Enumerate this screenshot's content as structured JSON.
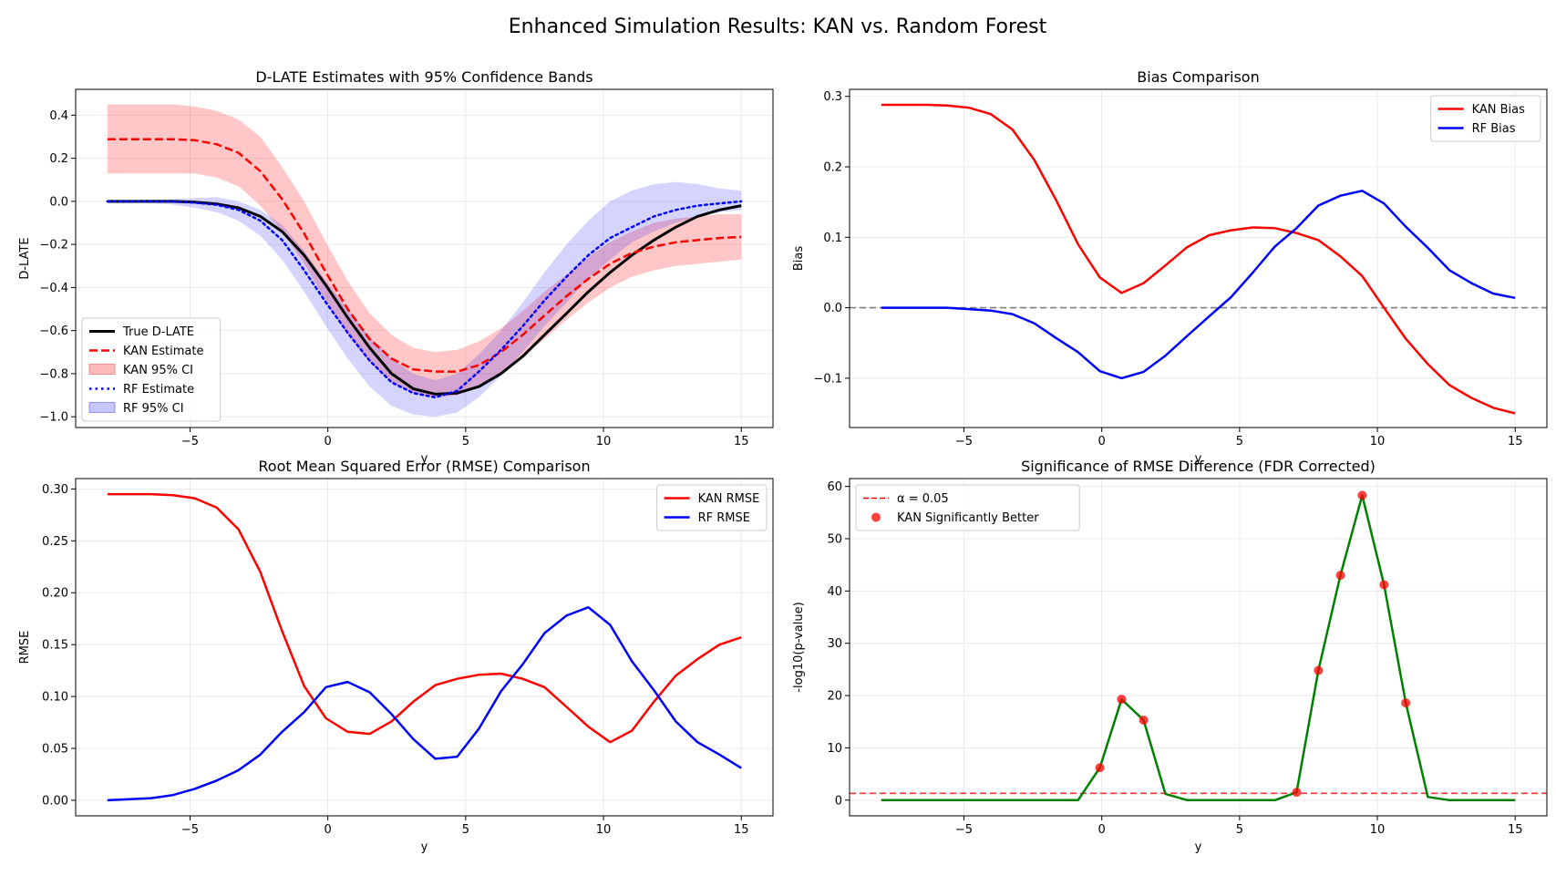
{
  "figure": {
    "title": "Enhanced Simulation Results: KAN vs. Random Forest"
  },
  "chart_data": [
    {
      "type": "line",
      "title": "D-LATE Estimates with 95% Confidence Bands",
      "xlabel": "y",
      "ylabel": "D-LATE",
      "xlim": [
        -9.15,
        16.15
      ],
      "ylim": [
        -1.05,
        0.52
      ],
      "xticks": [
        -5,
        0,
        5,
        10,
        15
      ],
      "yticks": [
        -1.0,
        -0.8,
        -0.6,
        -0.4,
        -0.2,
        0.0,
        0.2,
        0.4
      ],
      "grid": true,
      "legend_position": "lower-left",
      "x": [
        -8.0,
        -7.21,
        -6.41,
        -5.62,
        -4.83,
        -4.03,
        -3.24,
        -2.45,
        -1.66,
        -0.86,
        -0.07,
        0.72,
        1.52,
        2.31,
        3.1,
        3.9,
        4.69,
        5.48,
        6.28,
        7.07,
        7.86,
        8.66,
        9.45,
        10.24,
        11.03,
        11.83,
        12.62,
        13.41,
        14.21,
        15.0
      ],
      "series": [
        {
          "name": "True D-LATE",
          "color": "#000000",
          "style": "solid",
          "width": 3,
          "values": [
            0.0,
            0.0,
            0.0,
            0.0,
            -0.004,
            -0.012,
            -0.03,
            -0.07,
            -0.14,
            -0.25,
            -0.39,
            -0.54,
            -0.68,
            -0.8,
            -0.87,
            -0.895,
            -0.89,
            -0.86,
            -0.8,
            -0.72,
            -0.62,
            -0.52,
            -0.42,
            -0.33,
            -0.25,
            -0.18,
            -0.12,
            -0.07,
            -0.04,
            -0.02
          ]
        },
        {
          "name": "KAN Estimate",
          "color": "#ff0000",
          "style": "dashed",
          "width": 2.5,
          "values": [
            0.288,
            0.288,
            0.288,
            0.288,
            0.284,
            0.265,
            0.225,
            0.14,
            0.01,
            -0.15,
            -0.33,
            -0.5,
            -0.64,
            -0.73,
            -0.78,
            -0.79,
            -0.79,
            -0.76,
            -0.7,
            -0.62,
            -0.53,
            -0.44,
            -0.36,
            -0.29,
            -0.24,
            -0.21,
            -0.19,
            -0.18,
            -0.17,
            -0.165
          ]
        },
        {
          "name": "RF Estimate",
          "color": "#0000ff",
          "style": "dotted",
          "width": 2.5,
          "values": [
            0.0,
            0.0,
            0.0,
            -0.001,
            -0.006,
            -0.016,
            -0.04,
            -0.09,
            -0.18,
            -0.32,
            -0.47,
            -0.61,
            -0.74,
            -0.84,
            -0.89,
            -0.91,
            -0.88,
            -0.79,
            -0.69,
            -0.58,
            -0.46,
            -0.35,
            -0.25,
            -0.17,
            -0.12,
            -0.07,
            -0.04,
            -0.02,
            -0.01,
            0.0
          ]
        }
      ],
      "bands": [
        {
          "name": "KAN 95% CI",
          "color": "#ff0000",
          "opacity": 0.22,
          "lower": [
            0.13,
            0.13,
            0.13,
            0.13,
            0.13,
            0.11,
            0.07,
            -0.02,
            -0.14,
            -0.29,
            -0.46,
            -0.62,
            -0.75,
            -0.84,
            -0.89,
            -0.91,
            -0.9,
            -0.86,
            -0.8,
            -0.72,
            -0.64,
            -0.55,
            -0.47,
            -0.4,
            -0.35,
            -0.32,
            -0.3,
            -0.29,
            -0.28,
            -0.27
          ],
          "upper": [
            0.45,
            0.45,
            0.45,
            0.45,
            0.44,
            0.42,
            0.38,
            0.3,
            0.16,
            0.0,
            -0.19,
            -0.37,
            -0.52,
            -0.62,
            -0.68,
            -0.7,
            -0.69,
            -0.65,
            -0.59,
            -0.51,
            -0.42,
            -0.34,
            -0.26,
            -0.19,
            -0.14,
            -0.1,
            -0.08,
            -0.07,
            -0.06,
            -0.06
          ]
        },
        {
          "name": "RF 95% CI",
          "color": "#0000ff",
          "opacity": 0.17,
          "lower": [
            -0.01,
            -0.01,
            -0.01,
            -0.015,
            -0.03,
            -0.05,
            -0.09,
            -0.16,
            -0.27,
            -0.42,
            -0.58,
            -0.73,
            -0.86,
            -0.95,
            -0.99,
            -1.0,
            -0.98,
            -0.91,
            -0.81,
            -0.7,
            -0.58,
            -0.47,
            -0.36,
            -0.27,
            -0.19,
            -0.14,
            -0.1,
            -0.07,
            -0.05,
            -0.04
          ],
          "upper": [
            0.005,
            0.005,
            0.008,
            0.01,
            0.015,
            0.02,
            0.0,
            -0.04,
            -0.11,
            -0.23,
            -0.37,
            -0.5,
            -0.63,
            -0.73,
            -0.8,
            -0.83,
            -0.8,
            -0.71,
            -0.6,
            -0.47,
            -0.33,
            -0.2,
            -0.09,
            0.0,
            0.05,
            0.08,
            0.09,
            0.08,
            0.06,
            0.05
          ]
        }
      ]
    },
    {
      "type": "line",
      "title": "Bias Comparison",
      "xlabel": "y",
      "ylabel": "Bias",
      "xlim": [
        -9.15,
        16.15
      ],
      "ylim": [
        -0.17,
        0.31
      ],
      "xticks": [
        -5,
        0,
        5,
        10,
        15
      ],
      "yticks": [
        -0.1,
        0.0,
        0.1,
        0.2,
        0.3
      ],
      "grid": true,
      "legend_position": "upper-right",
      "reference_line": {
        "y": 0,
        "color": "#808080",
        "style": "dashed"
      },
      "x": [
        -8.0,
        -7.21,
        -6.41,
        -5.62,
        -4.83,
        -4.03,
        -3.24,
        -2.45,
        -1.66,
        -0.86,
        -0.07,
        0.72,
        1.52,
        2.31,
        3.1,
        3.9,
        4.69,
        5.48,
        6.28,
        7.07,
        7.86,
        8.66,
        9.45,
        10.24,
        11.03,
        11.83,
        12.62,
        13.41,
        14.21,
        15.0
      ],
      "series": [
        {
          "name": "KAN Bias",
          "color": "#ff0000",
          "style": "solid",
          "width": 2.5,
          "values": [
            0.288,
            0.288,
            0.288,
            0.287,
            0.284,
            0.275,
            0.253,
            0.21,
            0.153,
            0.09,
            0.043,
            0.021,
            0.035,
            0.06,
            0.086,
            0.103,
            0.11,
            0.114,
            0.113,
            0.106,
            0.096,
            0.073,
            0.045,
            0.0,
            -0.044,
            -0.08,
            -0.11,
            -0.128,
            -0.142,
            -0.15
          ]
        },
        {
          "name": "RF Bias",
          "color": "#0000ff",
          "style": "solid",
          "width": 2.5,
          "values": [
            0.0,
            0.0,
            0.0,
            0.0,
            -0.002,
            -0.004,
            -0.009,
            -0.022,
            -0.043,
            -0.063,
            -0.09,
            -0.1,
            -0.091,
            -0.068,
            -0.04,
            -0.012,
            0.015,
            0.05,
            0.087,
            0.113,
            0.145,
            0.159,
            0.166,
            0.148,
            0.115,
            0.085,
            0.053,
            0.035,
            0.02,
            0.014
          ]
        }
      ]
    },
    {
      "type": "line",
      "title": "Root Mean Squared Error (RMSE) Comparison",
      "xlabel": "y",
      "ylabel": "RMSE",
      "xlim": [
        -9.15,
        16.15
      ],
      "ylim": [
        -0.015,
        0.31
      ],
      "xticks": [
        -5,
        0,
        5,
        10,
        15
      ],
      "yticks": [
        0.0,
        0.05,
        0.1,
        0.15,
        0.2,
        0.25,
        0.3
      ],
      "ytick_labels": [
        "0.00",
        "0.05",
        "0.10",
        "0.15",
        "0.20",
        "0.25",
        "0.30"
      ],
      "grid": true,
      "legend_position": "upper-right",
      "x": [
        -8.0,
        -7.21,
        -6.41,
        -5.62,
        -4.83,
        -4.03,
        -3.24,
        -2.45,
        -1.66,
        -0.86,
        -0.07,
        0.72,
        1.52,
        2.31,
        3.1,
        3.9,
        4.69,
        5.48,
        6.28,
        7.07,
        7.86,
        8.66,
        9.45,
        10.24,
        11.03,
        11.83,
        12.62,
        13.41,
        14.21,
        15.0
      ],
      "series": [
        {
          "name": "KAN RMSE",
          "color": "#ff0000",
          "style": "solid",
          "width": 2.5,
          "values": [
            0.295,
            0.295,
            0.295,
            0.294,
            0.291,
            0.282,
            0.261,
            0.22,
            0.163,
            0.11,
            0.079,
            0.066,
            0.064,
            0.076,
            0.095,
            0.111,
            0.117,
            0.121,
            0.122,
            0.117,
            0.109,
            0.09,
            0.071,
            0.056,
            0.067,
            0.095,
            0.12,
            0.136,
            0.15,
            0.157
          ]
        },
        {
          "name": "RF RMSE",
          "color": "#0000ff",
          "style": "solid",
          "width": 2.5,
          "values": [
            0.0,
            0.001,
            0.002,
            0.005,
            0.011,
            0.019,
            0.029,
            0.044,
            0.066,
            0.085,
            0.109,
            0.114,
            0.104,
            0.083,
            0.059,
            0.04,
            0.042,
            0.069,
            0.105,
            0.131,
            0.161,
            0.178,
            0.186,
            0.169,
            0.134,
            0.106,
            0.076,
            0.056,
            0.044,
            0.031
          ]
        }
      ]
    },
    {
      "type": "line",
      "title": "Significance of RMSE Difference (FDR Corrected)",
      "xlabel": "y",
      "ylabel": "-log10(p-value)",
      "xlim": [
        -9.15,
        16.15
      ],
      "ylim": [
        -3,
        61.5
      ],
      "xticks": [
        -5,
        0,
        5,
        10,
        15
      ],
      "yticks": [
        0,
        10,
        20,
        30,
        40,
        50,
        60
      ],
      "grid": true,
      "legend_position": "upper-left",
      "reference_line": {
        "name": "α = 0.05",
        "y": 1.3,
        "color": "#ff0000",
        "style": "dashed"
      },
      "x": [
        -8.0,
        -7.21,
        -6.41,
        -5.62,
        -4.83,
        -4.03,
        -3.24,
        -2.45,
        -1.66,
        -0.86,
        -0.07,
        0.72,
        1.52,
        2.31,
        3.1,
        3.9,
        4.69,
        5.48,
        6.28,
        7.07,
        7.86,
        8.66,
        9.45,
        10.24,
        11.03,
        11.83,
        12.62,
        13.41,
        14.21,
        15.0
      ],
      "series": [
        {
          "name": "",
          "color": "#008000",
          "style": "solid",
          "width": 2.5,
          "values": [
            0,
            0,
            0,
            0,
            0,
            0,
            0,
            0,
            0,
            0,
            6.2,
            19.3,
            15.3,
            1.2,
            0,
            0,
            0,
            0,
            0,
            1.5,
            24.8,
            43.0,
            58.3,
            41.2,
            18.6,
            0.6,
            0,
            0,
            0,
            0
          ]
        }
      ],
      "points": {
        "name": "KAN Significantly Better",
        "color": "#ff0000",
        "x": [
          -0.07,
          0.72,
          1.52,
          7.07,
          7.86,
          8.66,
          9.45,
          10.24,
          11.03
        ],
        "y": [
          6.2,
          19.3,
          15.3,
          1.5,
          24.8,
          43.0,
          58.3,
          41.2,
          18.6
        ]
      }
    }
  ]
}
